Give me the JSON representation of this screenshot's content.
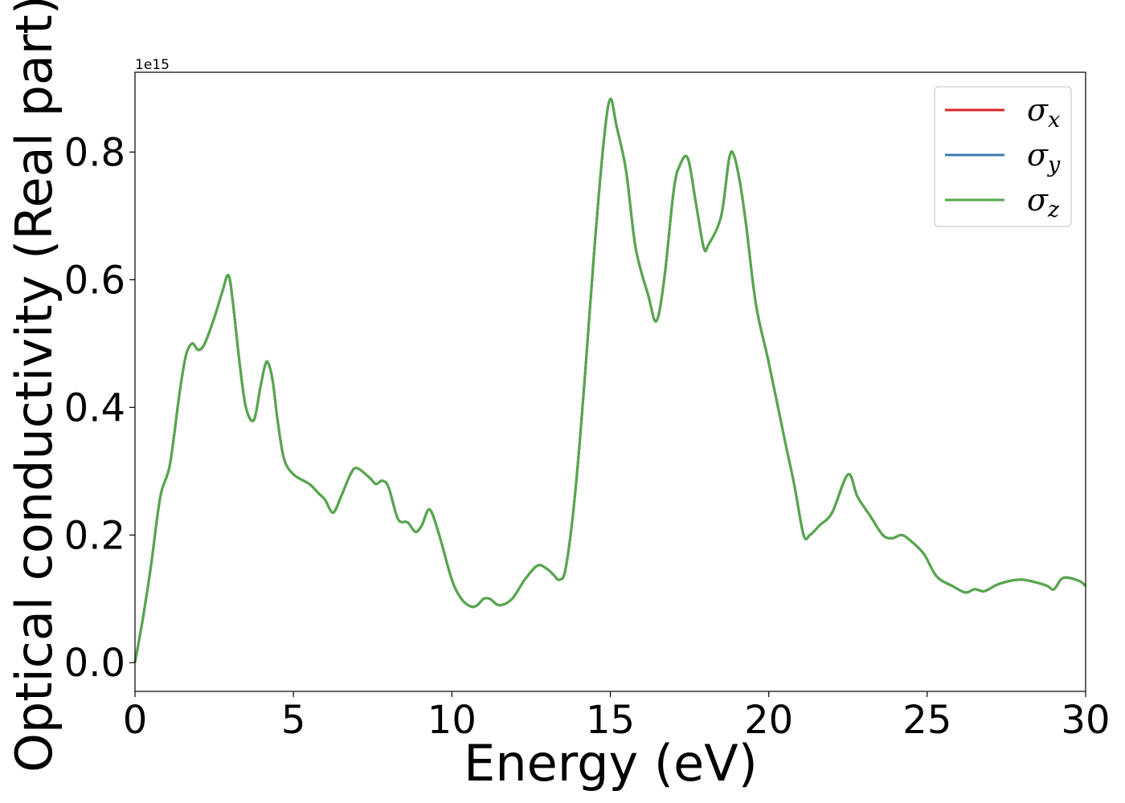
{
  "chart_data": {
    "type": "line",
    "xlabel": "Energy (eV)",
    "ylabel": "Optical conductivity (Real part)",
    "y_offset_text": "1e15",
    "xlim": [
      0,
      30
    ],
    "ylim": [
      -0.045,
      0.925
    ],
    "xticks": [
      0,
      5,
      10,
      15,
      20,
      25,
      30
    ],
    "xtick_labels": [
      "0",
      "5",
      "10",
      "15",
      "20",
      "25",
      "30"
    ],
    "yticks": [
      0.0,
      0.2,
      0.4,
      0.6,
      0.8
    ],
    "ytick_labels": [
      "0.0",
      "0.2",
      "0.4",
      "0.6",
      "0.8"
    ],
    "grid": false,
    "legend_placement": "top-right",
    "colors": {
      "sigma_x": "#d62728",
      "sigma_y": "#3a7bb0",
      "sigma_z": "#55a84a"
    },
    "x": [
      0,
      0.25,
      0.5,
      0.8,
      1.1,
      1.4,
      1.6,
      1.8,
      2.0,
      2.2,
      2.5,
      2.75,
      2.95,
      3.1,
      3.3,
      3.5,
      3.75,
      3.95,
      4.1,
      4.2,
      4.35,
      4.5,
      4.7,
      5.0,
      5.5,
      5.8,
      6.0,
      6.25,
      6.5,
      6.8,
      7.0,
      7.4,
      7.6,
      7.8,
      8.0,
      8.3,
      8.6,
      8.85,
      9.05,
      9.3,
      9.6,
      10.0,
      10.3,
      10.6,
      10.8,
      11.0,
      11.2,
      11.5,
      11.9,
      12.3,
      12.7,
      13.0,
      13.2,
      13.4,
      13.6,
      13.9,
      14.2,
      14.5,
      14.8,
      15.0,
      15.2,
      15.5,
      15.8,
      16.2,
      16.45,
      16.7,
      17.0,
      17.2,
      17.45,
      17.7,
      17.95,
      18.1,
      18.5,
      18.75,
      18.9,
      19.1,
      19.3,
      19.6,
      20.0,
      20.5,
      20.8,
      21.1,
      21.3,
      21.6,
      22.0,
      22.5,
      22.8,
      23.2,
      23.6,
      23.9,
      24.2,
      24.5,
      24.9,
      25.3,
      25.8,
      26.2,
      26.5,
      26.8,
      27.2,
      27.6,
      28.0,
      28.5,
      28.8,
      29.0,
      29.3,
      29.8,
      30.0
    ],
    "series": [
      {
        "name": "σx",
        "values": [
          0.0,
          0.07,
          0.15,
          0.26,
          0.31,
          0.42,
          0.48,
          0.5,
          0.49,
          0.5,
          0.54,
          0.58,
          0.607,
          0.56,
          0.47,
          0.4,
          0.38,
          0.43,
          0.465,
          0.47,
          0.44,
          0.38,
          0.32,
          0.295,
          0.28,
          0.265,
          0.255,
          0.235,
          0.26,
          0.295,
          0.305,
          0.29,
          0.28,
          0.285,
          0.275,
          0.225,
          0.22,
          0.205,
          0.215,
          0.24,
          0.2,
          0.13,
          0.1,
          0.088,
          0.09,
          0.1,
          0.1,
          0.09,
          0.1,
          0.13,
          0.152,
          0.147,
          0.138,
          0.13,
          0.15,
          0.27,
          0.45,
          0.65,
          0.82,
          0.883,
          0.84,
          0.77,
          0.65,
          0.575,
          0.535,
          0.6,
          0.74,
          0.78,
          0.79,
          0.72,
          0.65,
          0.655,
          0.7,
          0.79,
          0.795,
          0.75,
          0.68,
          0.56,
          0.47,
          0.35,
          0.28,
          0.2,
          0.2,
          0.215,
          0.235,
          0.295,
          0.26,
          0.23,
          0.2,
          0.195,
          0.2,
          0.19,
          0.17,
          0.135,
          0.12,
          0.11,
          0.115,
          0.112,
          0.122,
          0.128,
          0.13,
          0.125,
          0.12,
          0.115,
          0.133,
          0.128,
          0.12
        ]
      },
      {
        "name": "σy",
        "values": [
          0.0,
          0.07,
          0.15,
          0.26,
          0.31,
          0.42,
          0.48,
          0.5,
          0.49,
          0.5,
          0.54,
          0.58,
          0.607,
          0.56,
          0.47,
          0.4,
          0.38,
          0.43,
          0.465,
          0.47,
          0.44,
          0.38,
          0.32,
          0.295,
          0.28,
          0.265,
          0.255,
          0.235,
          0.26,
          0.295,
          0.305,
          0.29,
          0.28,
          0.285,
          0.275,
          0.225,
          0.22,
          0.205,
          0.215,
          0.24,
          0.2,
          0.13,
          0.1,
          0.088,
          0.09,
          0.1,
          0.1,
          0.09,
          0.1,
          0.13,
          0.152,
          0.147,
          0.138,
          0.13,
          0.15,
          0.27,
          0.45,
          0.65,
          0.82,
          0.883,
          0.84,
          0.77,
          0.65,
          0.575,
          0.535,
          0.6,
          0.74,
          0.78,
          0.79,
          0.72,
          0.65,
          0.655,
          0.7,
          0.79,
          0.795,
          0.75,
          0.68,
          0.56,
          0.47,
          0.35,
          0.28,
          0.2,
          0.2,
          0.215,
          0.235,
          0.295,
          0.26,
          0.23,
          0.2,
          0.195,
          0.2,
          0.19,
          0.17,
          0.135,
          0.12,
          0.11,
          0.115,
          0.112,
          0.122,
          0.128,
          0.13,
          0.125,
          0.12,
          0.115,
          0.133,
          0.128,
          0.12
        ]
      },
      {
        "name": "σz",
        "values": [
          0.0,
          0.07,
          0.15,
          0.26,
          0.31,
          0.42,
          0.48,
          0.5,
          0.49,
          0.5,
          0.54,
          0.58,
          0.607,
          0.56,
          0.47,
          0.4,
          0.38,
          0.43,
          0.465,
          0.47,
          0.44,
          0.38,
          0.32,
          0.295,
          0.28,
          0.265,
          0.255,
          0.235,
          0.26,
          0.295,
          0.305,
          0.29,
          0.28,
          0.285,
          0.275,
          0.225,
          0.22,
          0.205,
          0.215,
          0.24,
          0.2,
          0.13,
          0.1,
          0.088,
          0.09,
          0.1,
          0.1,
          0.09,
          0.1,
          0.13,
          0.152,
          0.147,
          0.138,
          0.13,
          0.15,
          0.27,
          0.45,
          0.65,
          0.82,
          0.883,
          0.84,
          0.77,
          0.65,
          0.575,
          0.535,
          0.6,
          0.74,
          0.78,
          0.79,
          0.72,
          0.65,
          0.655,
          0.7,
          0.79,
          0.795,
          0.75,
          0.68,
          0.56,
          0.47,
          0.35,
          0.28,
          0.2,
          0.2,
          0.215,
          0.235,
          0.295,
          0.26,
          0.23,
          0.2,
          0.195,
          0.2,
          0.19,
          0.17,
          0.135,
          0.12,
          0.11,
          0.115,
          0.112,
          0.122,
          0.128,
          0.13,
          0.125,
          0.12,
          0.115,
          0.133,
          0.128,
          0.12
        ]
      }
    ],
    "legend": [
      {
        "symbol": "σ",
        "sub": "x"
      },
      {
        "symbol": "σ",
        "sub": "y"
      },
      {
        "symbol": "σ",
        "sub": "z"
      }
    ]
  }
}
